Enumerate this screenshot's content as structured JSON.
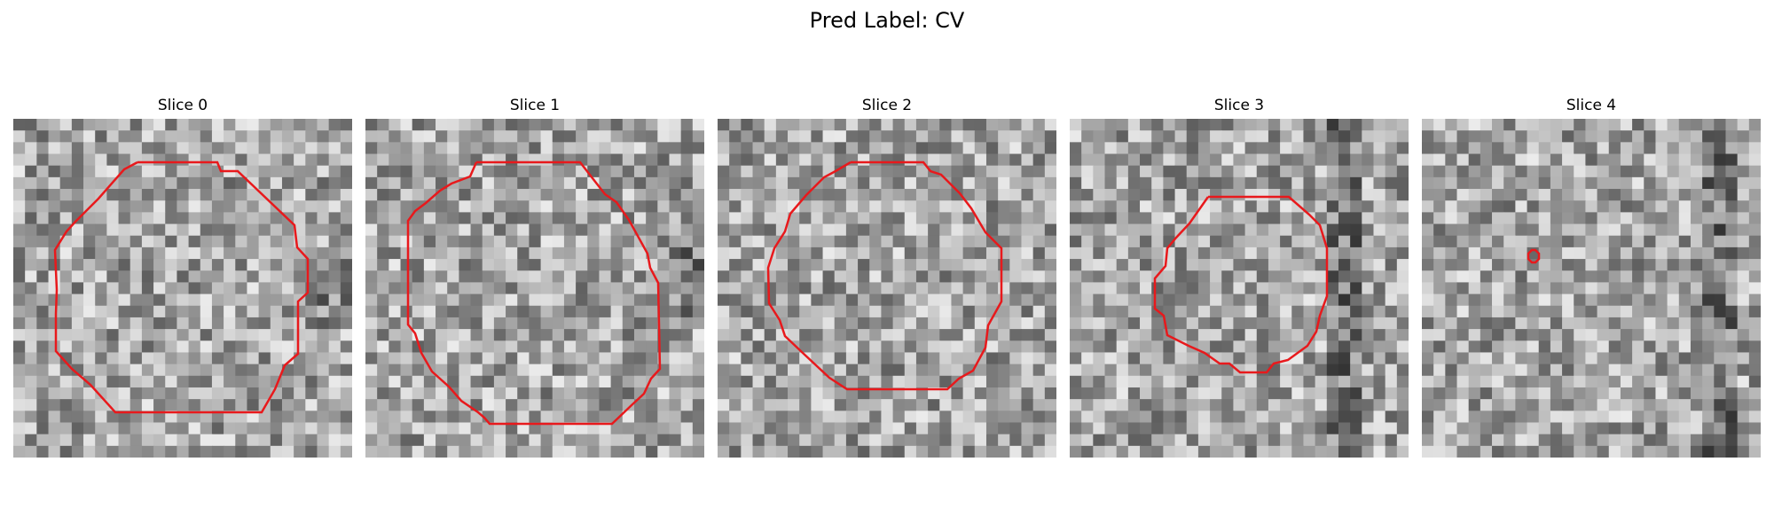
{
  "figure": {
    "title": "Pred Label: CV"
  },
  "panels": [
    {
      "title": "Slice 0",
      "contour": "large-irregular"
    },
    {
      "title": "Slice 1",
      "contour": "large-irregular"
    },
    {
      "title": "Slice 2",
      "contour": "medium-octagon"
    },
    {
      "title": "Slice 3",
      "contour": "small-octagon"
    },
    {
      "title": "Slice 4",
      "contour": "point"
    }
  ],
  "colors": {
    "contour": "#e8191c",
    "background": "#ffffff",
    "colormap": "grayscale"
  }
}
